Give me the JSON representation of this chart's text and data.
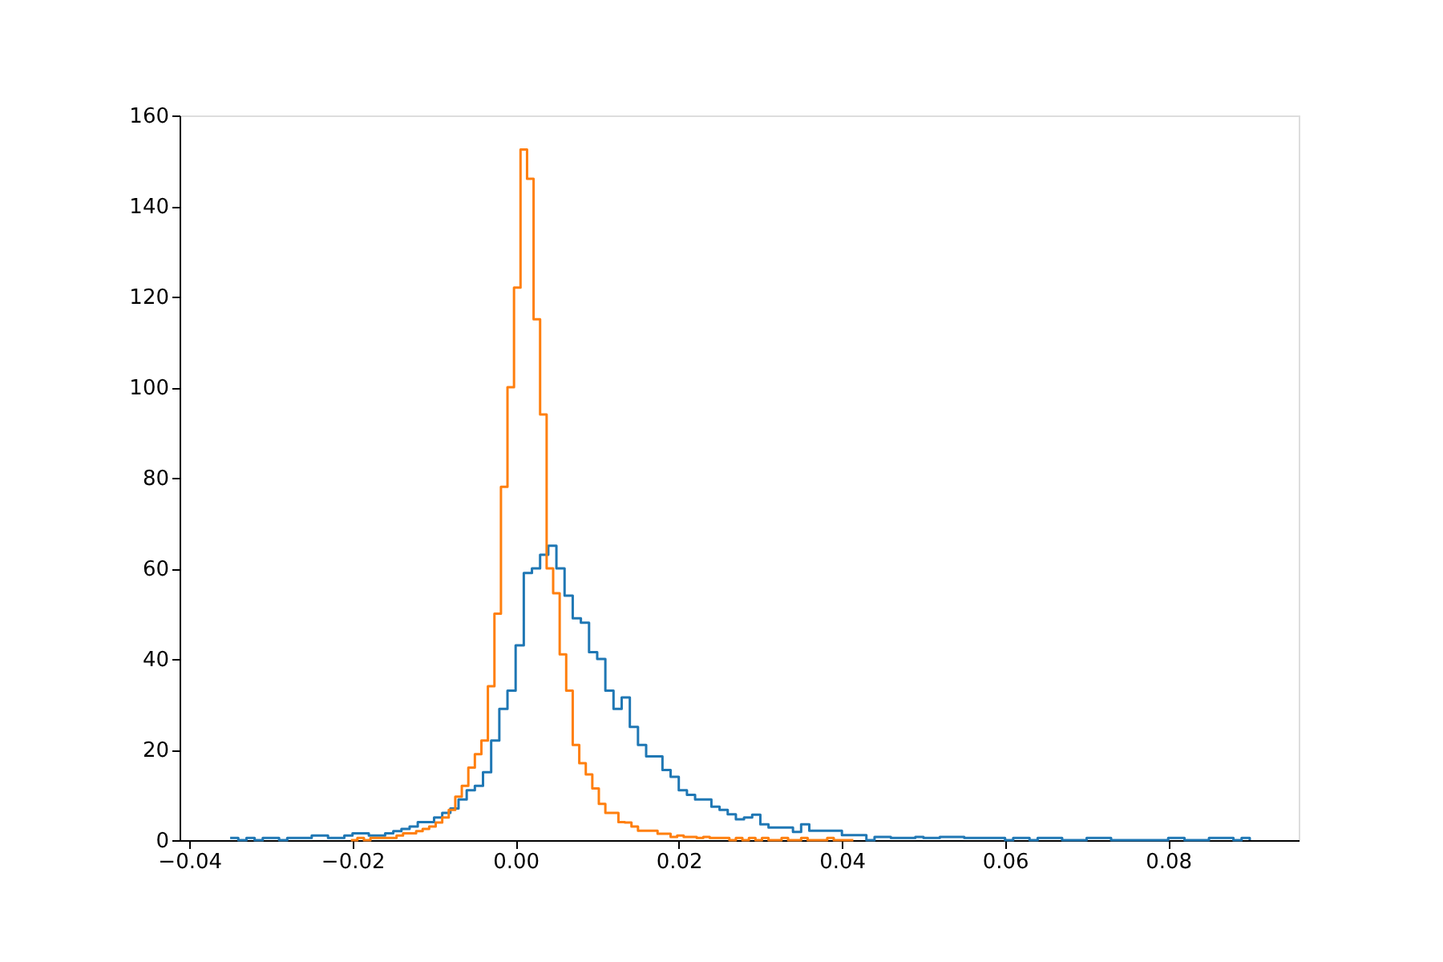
{
  "chart_data": {
    "type": "step",
    "xlim": [
      -0.0412,
      0.096
    ],
    "ylim": [
      0,
      160
    ],
    "xticks": [
      {
        "value": -0.04,
        "label": "−0.04"
      },
      {
        "value": -0.02,
        "label": "−0.02"
      },
      {
        "value": 0,
        "label": "0.00"
      },
      {
        "value": 0.02,
        "label": "0.02"
      },
      {
        "value": 0.04,
        "label": "0.04"
      },
      {
        "value": 0.06,
        "label": "0.06"
      },
      {
        "value": 0.08,
        "label": "0.08"
      }
    ],
    "yticks": [
      0,
      20,
      40,
      60,
      80,
      100,
      120,
      140,
      160
    ],
    "grid": false,
    "legend": false,
    "series": [
      {
        "color": "#1f77b4",
        "x": [
          -0.035,
          -0.034,
          -0.033,
          -0.032,
          -0.031,
          -0.03,
          -0.029,
          -0.028,
          -0.027,
          -0.026,
          -0.025,
          -0.024,
          -0.023,
          -0.022,
          -0.021,
          -0.02,
          -0.019,
          -0.018,
          -0.017,
          -0.016,
          -0.015,
          -0.014,
          -0.013,
          -0.012,
          -0.011,
          -0.01,
          -0.009,
          -0.008,
          -0.007,
          -0.006,
          -0.005,
          -0.004,
          -0.003,
          -0.002,
          -0.001,
          0,
          0.001,
          0.002,
          0.003,
          0.004,
          0.005,
          0.006,
          0.007,
          0.008,
          0.009,
          0.01,
          0.011,
          0.012,
          0.013,
          0.014,
          0.015,
          0.016,
          0.017,
          0.018,
          0.019,
          0.02,
          0.021,
          0.022,
          0.023,
          0.024,
          0.025,
          0.026,
          0.027,
          0.028,
          0.029,
          0.03,
          0.031,
          0.032,
          0.033,
          0.034,
          0.035,
          0.036,
          0.037,
          0.038,
          0.039,
          0.04,
          0.041,
          0.042,
          0.043,
          0.044,
          0.045,
          0.046,
          0.047,
          0.048,
          0.049,
          0.05,
          0.051,
          0.052,
          0.053,
          0.054,
          0.055,
          0.056,
          0.057,
          0.058,
          0.059,
          0.06,
          0.061,
          0.062,
          0.063,
          0.064,
          0.065,
          0.066,
          0.067,
          0.068,
          0.069,
          0.07,
          0.071,
          0.072,
          0.073,
          0.074,
          0.075,
          0.076,
          0.077,
          0.078,
          0.079,
          0.08,
          0.081,
          0.082,
          0.083,
          0.084,
          0.085,
          0.086,
          0.087,
          0.088,
          0.089,
          0.09
        ],
        "values": [
          0.5,
          0,
          0.5,
          0,
          0.5,
          0.5,
          0,
          0.5,
          0.5,
          0.5,
          1,
          1,
          0.5,
          0.5,
          1,
          1.5,
          1.5,
          1,
          1,
          1.5,
          2,
          2.5,
          3,
          4,
          4,
          5,
          6,
          7,
          9,
          11,
          12,
          15,
          22,
          29,
          33,
          43,
          59,
          60,
          63,
          65,
          60,
          54,
          49,
          48,
          41.5,
          40,
          33,
          29,
          31.5,
          25,
          21,
          18.5,
          18.5,
          15.5,
          14,
          11,
          10,
          9,
          9,
          7.4,
          6.7,
          5.7,
          4.6,
          5,
          5.6,
          3.5,
          2.8,
          2.8,
          2.8,
          1.8,
          3.5,
          2.1,
          2.1,
          2.1,
          2.1,
          1.1,
          1.1,
          1.1,
          0,
          0.7,
          0.7,
          0.5,
          0.5,
          0.5,
          0.7,
          0.5,
          0.5,
          0.7,
          0.7,
          0.7,
          0.5,
          0.5,
          0.5,
          0.5,
          0.5,
          0,
          0.5,
          0.5,
          0,
          0.5,
          0.5,
          0.5,
          0,
          0,
          0,
          0.5,
          0.5,
          0.5,
          0,
          0,
          0,
          0,
          0,
          0,
          0,
          0.5,
          0.5,
          0,
          0,
          0,
          0.5,
          0.5,
          0.5,
          0,
          0.5,
          0
        ]
      },
      {
        "color": "#ff7f0e",
        "x": [
          -0.0202,
          -0.0194,
          -0.0186,
          -0.0178,
          -0.017,
          -0.0162,
          -0.0154,
          -0.0146,
          -0.0138,
          -0.013,
          -0.0122,
          -0.0114,
          -0.0106,
          -0.0098,
          -0.009,
          -0.0082,
          -0.0074,
          -0.0066,
          -0.0058,
          -0.005,
          -0.0042,
          -0.0034,
          -0.0026,
          -0.0018,
          -0.001,
          -0.0002,
          0.0006,
          0.0014,
          0.0022,
          0.003,
          0.0038,
          0.0046,
          0.0054,
          0.0062,
          0.007,
          0.0078,
          0.0086,
          0.0094,
          0.0102,
          0.011,
          0.0118,
          0.0126,
          0.0134,
          0.0142,
          0.015,
          0.0158,
          0.0166,
          0.0174,
          0.0182,
          0.019,
          0.0198,
          0.0206,
          0.0214,
          0.0222,
          0.023,
          0.0238,
          0.0246,
          0.0254,
          0.0262,
          0.027,
          0.0278,
          0.0286,
          0.0294,
          0.0302,
          0.031,
          0.0318,
          0.0326,
          0.0334,
          0.0342,
          0.035,
          0.0358,
          0.0366,
          0.0374,
          0.0382,
          0.039,
          0.0398,
          0.0406,
          0.0414
        ],
        "values": [
          0,
          0.5,
          0,
          0.5,
          0.5,
          0.5,
          0.5,
          1,
          1.5,
          1.5,
          2,
          2.5,
          3,
          3.9,
          5,
          6.7,
          9.6,
          12,
          16,
          19,
          22,
          34,
          50,
          78,
          100,
          122,
          152.5,
          146,
          115,
          94,
          60,
          54.5,
          41,
          33,
          21,
          17,
          14.5,
          11.4,
          8,
          6,
          6,
          4,
          3.9,
          3,
          2.1,
          2.1,
          2.1,
          1.4,
          1.4,
          0.7,
          1,
          0.7,
          0.7,
          0.5,
          0.7,
          0.5,
          0.5,
          0.5,
          0,
          0.5,
          0,
          0.5,
          0,
          0.5,
          0,
          0,
          0.5,
          0,
          0,
          0.5,
          0,
          0,
          0,
          0.5,
          0,
          0,
          0,
          0
        ]
      }
    ]
  }
}
